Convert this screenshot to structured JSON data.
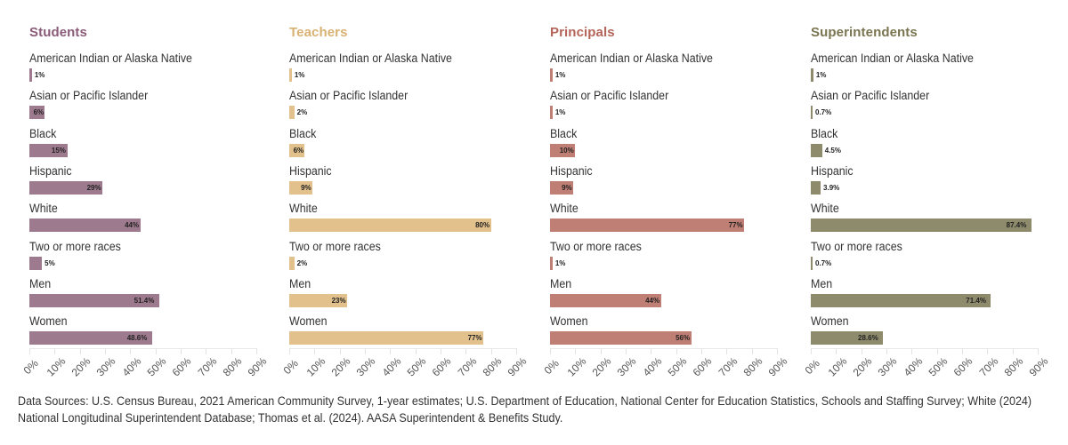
{
  "chart_data": [
    {
      "type": "bar",
      "orientation": "horizontal",
      "title": "Students",
      "color": "#9e7a8e",
      "title_color": "#8a5b78",
      "categories": [
        "American Indian or Alaska Native",
        "Asian or Pacific Islander",
        "Black",
        "Hispanic",
        "White",
        "Two or more races",
        "Men",
        "Women"
      ],
      "values": [
        1,
        6,
        15,
        29,
        44,
        5,
        51.4,
        48.6
      ],
      "labels": [
        "1%",
        "6%",
        "15%",
        "29%",
        "44%",
        "5%",
        "51.4%",
        "48.6%"
      ],
      "xlim": [
        0,
        90
      ],
      "xticks": [
        "0%",
        "10%",
        "20%",
        "30%",
        "40%",
        "50%",
        "60%",
        "70%",
        "80%",
        "90%"
      ],
      "grid": true
    },
    {
      "type": "bar",
      "orientation": "horizontal",
      "title": "Teachers",
      "color": "#e2c18d",
      "title_color": "#d9b173",
      "categories": [
        "American Indian or Alaska Native",
        "Asian or Pacific Islander",
        "Black",
        "Hispanic",
        "White",
        "Two or more races",
        "Men",
        "Women"
      ],
      "values": [
        1,
        2,
        6,
        9,
        80,
        2,
        23,
        77
      ],
      "labels": [
        "1%",
        "2%",
        "6%",
        "9%",
        "80%",
        "2%",
        "23%",
        "77%"
      ],
      "xlim": [
        0,
        90
      ],
      "xticks": [
        "0%",
        "10%",
        "20%",
        "30%",
        "40%",
        "50%",
        "60%",
        "70%",
        "80%",
        "90%"
      ],
      "grid": true
    },
    {
      "type": "bar",
      "orientation": "horizontal",
      "title": "Principals",
      "color": "#c07f75",
      "title_color": "#b5645a",
      "categories": [
        "American Indian or Alaska Native",
        "Asian or Pacific Islander",
        "Black",
        "Hispanic",
        "White",
        "Two or more races",
        "Men",
        "Women"
      ],
      "values": [
        1,
        1,
        10,
        9,
        77,
        1,
        44,
        56
      ],
      "labels": [
        "1%",
        "1%",
        "10%",
        "9%",
        "77%",
        "1%",
        "44%",
        "56%"
      ],
      "xlim": [
        0,
        90
      ],
      "xticks": [
        "0%",
        "10%",
        "20%",
        "30%",
        "40%",
        "50%",
        "60%",
        "70%",
        "80%",
        "90%"
      ],
      "grid": true
    },
    {
      "type": "bar",
      "orientation": "horizontal",
      "title": "Superintendents",
      "color": "#8e8a6c",
      "title_color": "#7a7550",
      "categories": [
        "American Indian or Alaska Native",
        "Asian or Pacific Islander",
        "Black",
        "Hispanic",
        "White",
        "Two or more races",
        "Men",
        "Women"
      ],
      "values": [
        1,
        0.7,
        4.5,
        3.9,
        87.4,
        0.7,
        71.4,
        28.6
      ],
      "labels": [
        "1%",
        "0.7%",
        "4.5%",
        "3.9%",
        "87.4%",
        "0.7%",
        "71.4%",
        "28.6%"
      ],
      "xlim": [
        0,
        90
      ],
      "xticks": [
        "0%",
        "10%",
        "20%",
        "30%",
        "40%",
        "50%",
        "60%",
        "70%",
        "80%",
        "90%"
      ],
      "grid": true
    }
  ],
  "source_note": "Data Sources: U.S. Census Bureau, 2021 American Community Survey, 1-year estimates; U.S. Department of Education, National Center for Education Statistics, Schools and Staffing Survey; White (2024) National Longitudinal Superintendent Database; Thomas et al. (2024). AASA Superintendent & Benefits Study."
}
